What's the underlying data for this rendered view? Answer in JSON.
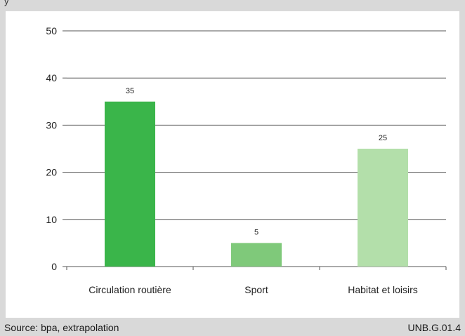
{
  "chart_data": {
    "type": "bar",
    "categories": [
      "Circulation routière",
      "Sport",
      "Habitat et loisirs"
    ],
    "values": [
      35,
      5,
      25
    ],
    "data_labels": [
      "35",
      "5",
      "25"
    ],
    "bar_colors": [
      "#3ab54a",
      "#7fc97a",
      "#b3dfaa"
    ],
    "ylim": [
      0,
      50
    ],
    "yticks": [
      0,
      10,
      20,
      30,
      40,
      50
    ],
    "grid": true,
    "legend": "none"
  },
  "footer": {
    "source": "Source: bpa, extrapolation",
    "code": "UNB.G.01.4"
  }
}
